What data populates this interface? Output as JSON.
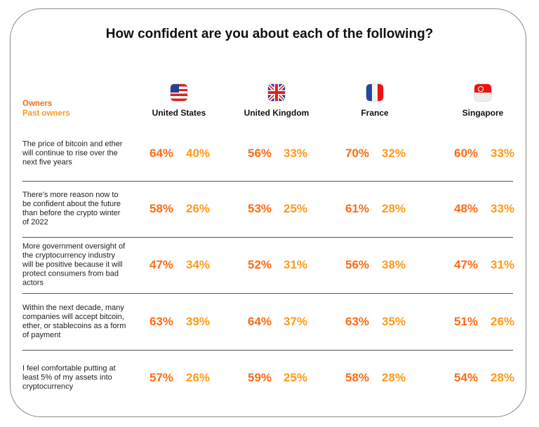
{
  "title": "How confident are you about each of the following?",
  "legend": {
    "owners": "Owners",
    "past_owners": "Past owners"
  },
  "colors": {
    "owners": "#ff6a13",
    "past_owners": "#ff9a1a"
  },
  "countries": [
    {
      "name": "United States",
      "flag": "us-flag-icon"
    },
    {
      "name": "United Kingdom",
      "flag": "uk-flag-icon"
    },
    {
      "name": "France",
      "flag": "france-flag-icon"
    },
    {
      "name": "Singapore",
      "flag": "singapore-flag-icon"
    }
  ],
  "rows": [
    {
      "question": "The price of bitcoin and ether will continue to rise over the next five years",
      "values": [
        [
          "64%",
          "40%"
        ],
        [
          "56%",
          "33%"
        ],
        [
          "70%",
          "32%"
        ],
        [
          "60%",
          "33%"
        ]
      ]
    },
    {
      "question": "There's more reason now to be confident about the future than before the crypto winter of 2022",
      "values": [
        [
          "58%",
          "26%"
        ],
        [
          "53%",
          "25%"
        ],
        [
          "61%",
          "28%"
        ],
        [
          "48%",
          "33%"
        ]
      ]
    },
    {
      "question": "More government oversight of the cryptocurrency industry will be positive because it will protect consumers from bad actors",
      "values": [
        [
          "47%",
          "34%"
        ],
        [
          "52%",
          "31%"
        ],
        [
          "56%",
          "38%"
        ],
        [
          "47%",
          "31%"
        ]
      ]
    },
    {
      "question": "Within the next decade, many companies will accept bitcoin, ether, or stablecoins as a form of payment",
      "values": [
        [
          "63%",
          "39%"
        ],
        [
          "64%",
          "37%"
        ],
        [
          "63%",
          "35%"
        ],
        [
          "51%",
          "26%"
        ]
      ]
    },
    {
      "question": "I feel comfortable putting at least 5% of my assets into cryptocurrency",
      "values": [
        [
          "57%",
          "26%"
        ],
        [
          "59%",
          "25%"
        ],
        [
          "58%",
          "28%"
        ],
        [
          "54%",
          "28%"
        ]
      ]
    }
  ]
}
